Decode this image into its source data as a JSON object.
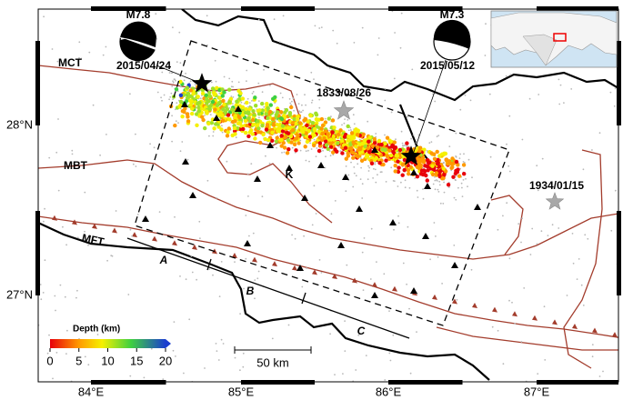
{
  "map": {
    "events": [
      {
        "magnitude": "M7.8",
        "date": "2015/04/24"
      },
      {
        "magnitude": "M7.3",
        "date": "2015/05/12"
      }
    ],
    "historical_events": [
      "1833/08/26",
      "1934/01/15"
    ],
    "faults": [
      "MCT",
      "MBT",
      "MFT"
    ],
    "place_labels": [
      "K"
    ],
    "profile_labels": [
      "A",
      "B",
      "C"
    ],
    "longitude_labels": [
      "84°E",
      "85°E",
      "86°E",
      "87°E"
    ],
    "latitude_labels": [
      "27°N",
      "28°N"
    ],
    "scale_bar": "50 km",
    "colorbar": {
      "title": "Depth (km)",
      "ticks": [
        0,
        5,
        10,
        15,
        20
      ]
    }
  }
}
